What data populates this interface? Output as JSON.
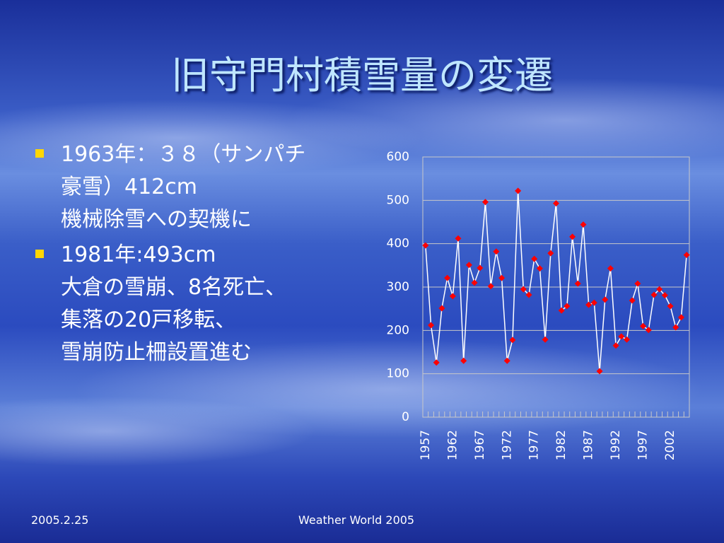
{
  "slide": {
    "title": "旧守門村積雪量の変遷",
    "bullets": [
      {
        "lines": [
          "1963年：３８（サンパチ",
          "豪雪）412cm",
          "機械除雪への契機に"
        ]
      },
      {
        "lines": [
          "1981年:493cm",
          "大倉の雪崩、8名死亡、",
          "集落の20戸移転、",
          "雪崩防止柵設置進む"
        ]
      }
    ],
    "footer_left": "2005.2.25",
    "footer_center": "Weather World 2005"
  },
  "chart_data": {
    "type": "line",
    "color": "#ffffff",
    "marker_color": "#ff0000",
    "categories": [
      "1957",
      null,
      null,
      null,
      null,
      "1962",
      null,
      null,
      null,
      null,
      "1967",
      null,
      null,
      null,
      null,
      "1972",
      null,
      null,
      null,
      null,
      "1977",
      null,
      null,
      null,
      null,
      "1982",
      null,
      null,
      null,
      null,
      "1987",
      null,
      null,
      null,
      null,
      "1992",
      null,
      null,
      null,
      null,
      "1997",
      null,
      null,
      null,
      null,
      "2002",
      null,
      null,
      null
    ],
    "values": [
      396,
      212,
      126,
      251,
      321,
      279,
      412,
      130,
      351,
      310,
      344,
      496,
      302,
      382,
      321,
      130,
      178,
      522,
      295,
      282,
      365,
      343,
      179,
      378,
      493,
      246,
      256,
      416,
      308,
      444,
      259,
      264,
      106,
      271,
      343,
      165,
      186,
      179,
      269,
      308,
      210,
      201,
      282,
      295,
      281,
      256,
      207,
      230,
      374
    ],
    "ylim": [
      0,
      600
    ],
    "yticks": [
      0,
      100,
      200,
      300,
      400,
      500,
      600
    ],
    "grid": true
  }
}
